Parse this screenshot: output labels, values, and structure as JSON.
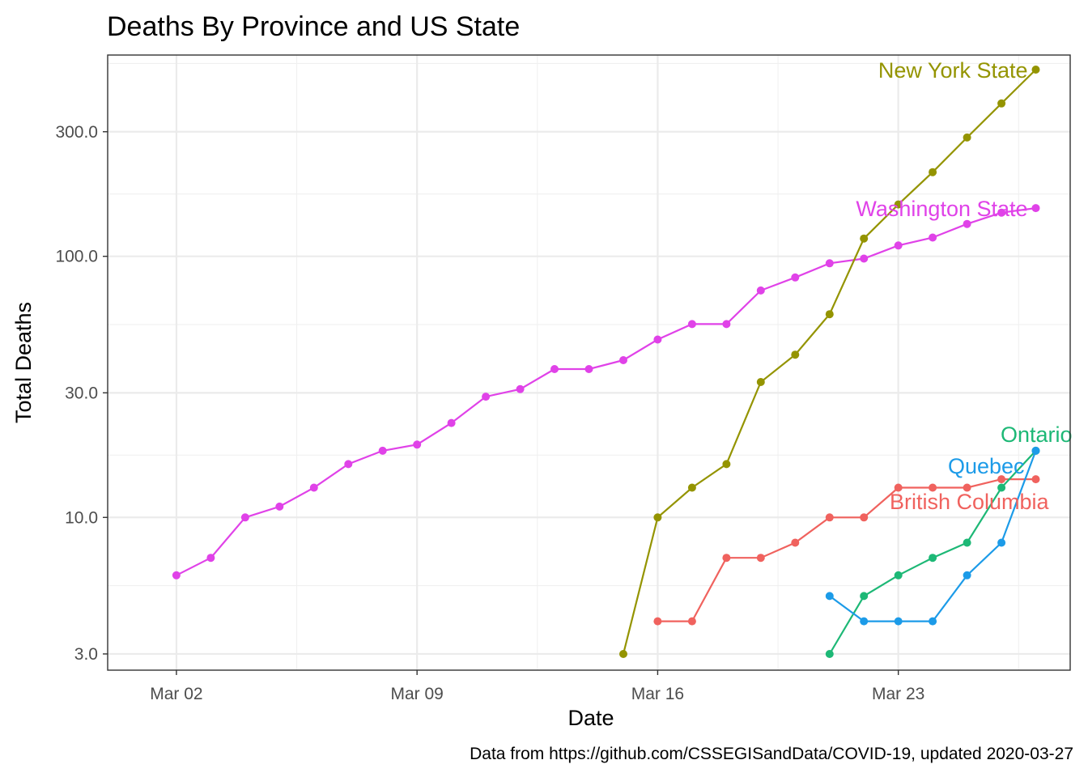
{
  "chart_data": {
    "type": "line",
    "title": "Deaths By Province and US State",
    "xlabel": "Date",
    "ylabel": "Total Deaths",
    "caption": "Data from https://github.com/CSSEGISandData/COVID-19, updated 2020-03-27",
    "y_scale": "log10",
    "ylim": [
      2.6,
      590
    ],
    "xlim": [
      "2020-02-29",
      "2020-03-28"
    ],
    "y_ticks": [
      3,
      10,
      30,
      100,
      300
    ],
    "y_tick_labels": [
      "3.0",
      "10.0",
      "30.0",
      "100.0",
      "300.0"
    ],
    "x_ticks": [
      "2020-03-02",
      "2020-03-09",
      "2020-03-16",
      "2020-03-23"
    ],
    "x_tick_labels": [
      "Mar 02",
      "Mar 09",
      "Mar 16",
      "Mar 23"
    ],
    "grid": true,
    "legend": "none",
    "series": [
      {
        "name": "Washington State",
        "color": "#E042E8",
        "x": [
          "2020-03-02",
          "2020-03-03",
          "2020-03-04",
          "2020-03-05",
          "2020-03-06",
          "2020-03-07",
          "2020-03-08",
          "2020-03-09",
          "2020-03-10",
          "2020-03-11",
          "2020-03-12",
          "2020-03-13",
          "2020-03-14",
          "2020-03-15",
          "2020-03-16",
          "2020-03-17",
          "2020-03-18",
          "2020-03-19",
          "2020-03-20",
          "2020-03-21",
          "2020-03-22",
          "2020-03-23",
          "2020-03-24",
          "2020-03-25",
          "2020-03-26",
          "2020-03-27"
        ],
        "values": [
          6,
          7,
          10,
          11,
          13,
          16,
          18,
          19,
          23,
          29,
          31,
          37,
          37,
          40,
          48,
          55,
          55,
          74,
          83,
          94,
          98,
          110,
          118,
          133,
          147,
          153
        ]
      },
      {
        "name": "New York State",
        "color": "#949400",
        "x": [
          "2020-03-15",
          "2020-03-16",
          "2020-03-17",
          "2020-03-18",
          "2020-03-19",
          "2020-03-20",
          "2020-03-21",
          "2020-03-22",
          "2020-03-23",
          "2020-03-24",
          "2020-03-25",
          "2020-03-26",
          "2020-03-27"
        ],
        "values": [
          3,
          10,
          13,
          16,
          33,
          42,
          60,
          117,
          158,
          210,
          285,
          385,
          519
        ]
      },
      {
        "name": "British Columbia",
        "color": "#F0625E",
        "x": [
          "2020-03-16",
          "2020-03-17",
          "2020-03-18",
          "2020-03-19",
          "2020-03-20",
          "2020-03-21",
          "2020-03-22",
          "2020-03-23",
          "2020-03-24",
          "2020-03-25",
          "2020-03-26",
          "2020-03-27"
        ],
        "values": [
          4,
          4,
          7,
          7,
          8,
          10,
          10,
          13,
          13,
          13,
          14,
          14
        ]
      },
      {
        "name": "Ontario",
        "color": "#1DB876",
        "x": [
          "2020-03-21",
          "2020-03-22",
          "2020-03-23",
          "2020-03-24",
          "2020-03-25",
          "2020-03-26",
          "2020-03-27"
        ],
        "values": [
          3,
          5,
          6,
          7,
          8,
          13,
          18
        ]
      },
      {
        "name": "Quebec",
        "color": "#1C9BE8",
        "x": [
          "2020-03-21",
          "2020-03-22",
          "2020-03-23",
          "2020-03-24",
          "2020-03-25",
          "2020-03-26",
          "2020-03-27"
        ],
        "values": [
          5,
          4,
          4,
          4,
          6,
          8,
          18
        ]
      }
    ]
  }
}
